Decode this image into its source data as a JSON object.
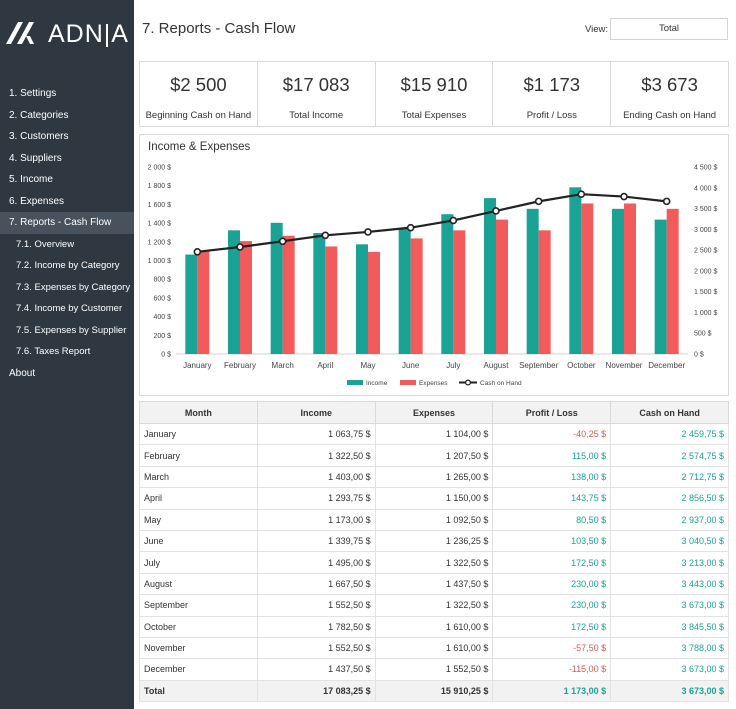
{
  "brand": {
    "name": "ADN|A"
  },
  "sidebar": {
    "items": [
      {
        "label": "1. Settings"
      },
      {
        "label": "2. Categories"
      },
      {
        "label": "3. Customers"
      },
      {
        "label": "4. Suppliers"
      },
      {
        "label": "5. Income"
      },
      {
        "label": "6. Expenses"
      },
      {
        "label": "7. Reports - Cash Flow"
      },
      {
        "label": "7.1. Overview"
      },
      {
        "label": "7.2. Income by Category"
      },
      {
        "label": "7.3. Expenses by Category"
      },
      {
        "label": "7.4. Income by Customer"
      },
      {
        "label": "7.5. Expenses by Supplier"
      },
      {
        "label": "7.6. Taxes Report"
      },
      {
        "label": "About"
      }
    ],
    "active_index": 6
  },
  "header": {
    "title": "7. Reports - Cash Flow",
    "view_label": "View:",
    "view_value": "Total"
  },
  "kpis": [
    {
      "value": "$2 500",
      "label": "Beginning Cash on Hand"
    },
    {
      "value": "$17 083",
      "label": "Total Income"
    },
    {
      "value": "$15 910",
      "label": "Total Expenses"
    },
    {
      "value": "$1 173",
      "label": "Profit / Loss"
    },
    {
      "value": "$3 673",
      "label": "Ending Cash on Hand"
    }
  ],
  "colors": {
    "income": "#1aa394",
    "expenses": "#f15b5b",
    "cash": "#222222",
    "sidebar": "#2f3740"
  },
  "chart_data": {
    "type": "bar",
    "title": "Income & Expenses",
    "categories": [
      "January",
      "February",
      "March",
      "April",
      "May",
      "June",
      "July",
      "August",
      "September",
      "October",
      "November",
      "December"
    ],
    "series": [
      {
        "name": "Income",
        "type": "bar",
        "axis": "left",
        "values": [
          1063.75,
          1322.5,
          1403.0,
          1293.75,
          1173.0,
          1339.75,
          1495.0,
          1667.5,
          1552.5,
          1782.5,
          1552.5,
          1437.5
        ]
      },
      {
        "name": "Expenses",
        "type": "bar",
        "axis": "left",
        "values": [
          1104.0,
          1207.5,
          1265.0,
          1150.0,
          1092.5,
          1236.25,
          1322.5,
          1437.5,
          1322.5,
          1610.0,
          1610.0,
          1552.5
        ]
      },
      {
        "name": "Cash on Hand",
        "type": "line",
        "axis": "right",
        "values": [
          2459.75,
          2574.75,
          2712.75,
          2856.5,
          2937.0,
          3040.5,
          3213.0,
          3443.0,
          3673.0,
          3845.5,
          3788.0,
          3673.0
        ]
      }
    ],
    "left_ticks": [
      "2 000 $",
      "1 800 $",
      "1 600 $",
      "1 400 $",
      "1 200 $",
      "1 000 $",
      "800 $",
      "600 $",
      "400 $",
      "200 $",
      "0 $"
    ],
    "right_ticks": [
      "4 500 $",
      "4 000 $",
      "3 500 $",
      "3 000 $",
      "2 500 $",
      "2 000 $",
      "1 500 $",
      "1 000 $",
      "500 $",
      "0 $"
    ],
    "ylim_left": [
      0,
      2000
    ],
    "ylim_right": [
      0,
      4500
    ],
    "legend": "bottom",
    "grid": false
  },
  "table": {
    "headers": [
      "Month",
      "Income",
      "Expenses",
      "Profit / Loss",
      "Cash on Hand"
    ],
    "rows": [
      [
        "January",
        "1 063,75 $",
        "1 104,00 $",
        "-40,25 $",
        "2 459,75 $"
      ],
      [
        "February",
        "1 322,50 $",
        "1 207,50 $",
        "115,00 $",
        "2 574,75 $"
      ],
      [
        "March",
        "1 403,00 $",
        "1 265,00 $",
        "138,00 $",
        "2 712,75 $"
      ],
      [
        "April",
        "1 293,75 $",
        "1 150,00 $",
        "143,75 $",
        "2 856,50 $"
      ],
      [
        "May",
        "1 173,00 $",
        "1 092,50 $",
        "80,50 $",
        "2 937,00 $"
      ],
      [
        "June",
        "1 339,75 $",
        "1 236,25 $",
        "103,50 $",
        "3 040,50 $"
      ],
      [
        "July",
        "1 495,00 $",
        "1 322,50 $",
        "172,50 $",
        "3 213,00 $"
      ],
      [
        "August",
        "1 667,50 $",
        "1 437,50 $",
        "230,00 $",
        "3 443,00 $"
      ],
      [
        "September",
        "1 552,50 $",
        "1 322,50 $",
        "230,00 $",
        "3 673,00 $"
      ],
      [
        "October",
        "1 782,50 $",
        "1 610,00 $",
        "172,50 $",
        "3 845,50 $"
      ],
      [
        "November",
        "1 552,50 $",
        "1 610,00 $",
        "-57,50 $",
        "3 788,00 $"
      ],
      [
        "December",
        "1 437,50 $",
        "1 552,50 $",
        "-115,00 $",
        "3 673,00 $"
      ]
    ],
    "total": [
      "Total",
      "17 083,25 $",
      "15 910,25 $",
      "1 173,00 $",
      "3 673,00 $"
    ]
  }
}
